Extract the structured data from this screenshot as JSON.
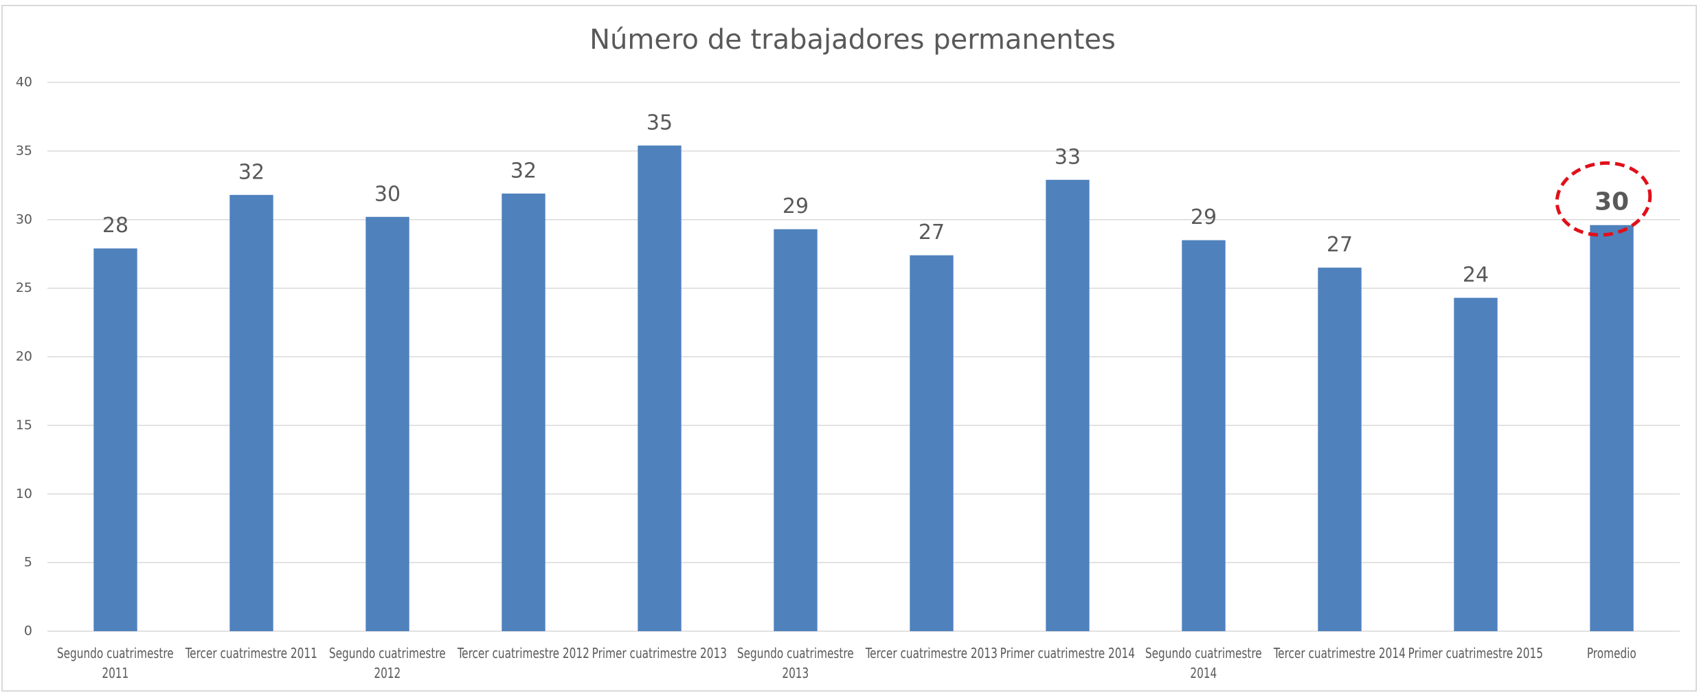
{
  "chart_data": {
    "type": "bar",
    "title": "Número de trabajadores permanentes",
    "categories": [
      "Segundo cuatrimestre 2011",
      "Tercer cuatrimestre 2011",
      "Segundo cuatrimestre 2012",
      "Tercer cuatrimestre 2012",
      "Primer cuatrimestre 2013",
      "Segundo cuatrimestre 2013",
      "Tercer cuatrimestre 2013",
      "Primer cuatrimestre 2014",
      "Segundo cuatrimestre 2014",
      "Tercer cuatrimestre 2014",
      "Primer cuatrimestre 2015",
      "Promedio"
    ],
    "values": [
      27.9,
      31.8,
      30.2,
      31.9,
      35.4,
      29.3,
      27.4,
      32.9,
      28.5,
      26.5,
      24.3,
      29.6
    ],
    "value_labels": [
      "28",
      "32",
      "30",
      "32",
      "35",
      "29",
      "27",
      "33",
      "29",
      "27",
      "24",
      "30"
    ],
    "color": "#4f81bd",
    "ylim": [
      0,
      40
    ],
    "yticks": [
      0,
      5,
      10,
      15,
      20,
      25,
      30,
      35,
      40
    ],
    "grid": true
  }
}
